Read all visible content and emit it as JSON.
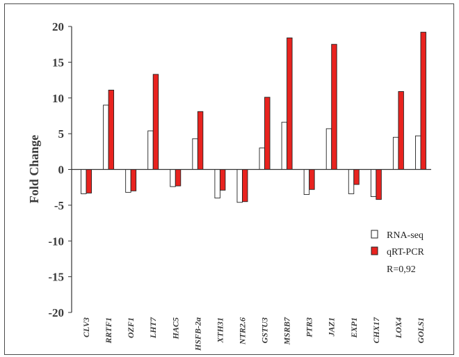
{
  "chart_data": {
    "type": "bar",
    "ylabel": "Fold Change",
    "xlabel": "",
    "ylim": [
      -20,
      20
    ],
    "yticks": [
      20,
      15,
      10,
      5,
      0,
      -5,
      -10,
      -15,
      -20
    ],
    "categories": [
      "CLV3",
      "RRTF1",
      "OZF1",
      "LHT7",
      "HAC5",
      "HSFB-2a",
      "XTH31",
      "NTR2.6",
      "GSTU3",
      "MSRB7",
      "PTR3",
      "JAZ1",
      "EXP1",
      "CHX17",
      "LOX4",
      "GOLS1"
    ],
    "series": [
      {
        "name": "RNA-seq",
        "color": "#ffffff",
        "values": [
          -3.4,
          9.0,
          -3.2,
          5.4,
          -2.4,
          4.3,
          -4.0,
          -4.6,
          3.0,
          6.6,
          -3.5,
          5.7,
          -3.4,
          -3.8,
          4.5,
          4.7
        ]
      },
      {
        "name": "qRT-PCR",
        "color": "#e8231f",
        "values": [
          -3.3,
          11.1,
          -3.0,
          13.3,
          -2.3,
          8.1,
          -2.9,
          -4.5,
          10.1,
          18.4,
          -2.8,
          17.5,
          -2.1,
          -4.2,
          10.9,
          19.2
        ]
      }
    ],
    "annotation": "R=0,92",
    "legend_position": "right-middle"
  }
}
